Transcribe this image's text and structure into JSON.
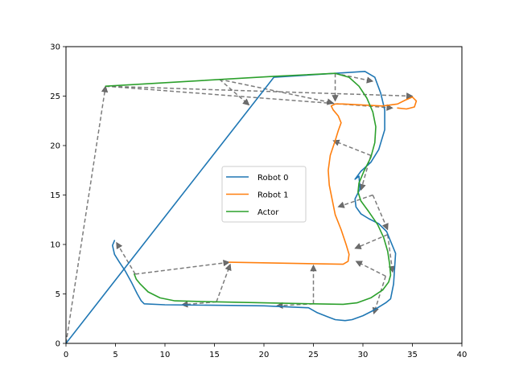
{
  "chart_data": {
    "type": "line",
    "title": "",
    "xlabel": "",
    "ylabel": "",
    "xlim": [
      0,
      40
    ],
    "ylim": [
      0,
      30
    ],
    "xticks": [
      0,
      5,
      10,
      15,
      20,
      25,
      30,
      35,
      40
    ],
    "yticks": [
      0,
      5,
      10,
      15,
      20,
      25,
      30
    ],
    "grid": false,
    "legend": {
      "placement": "center",
      "entries": [
        "Robot 0",
        "Robot 1",
        "Actor"
      ]
    },
    "series": [
      {
        "name": "Robot 0",
        "color": "#1f77b4",
        "x": [
          0,
          21,
          30.2,
          31.2,
          31.8,
          32.2,
          32.2,
          31.6,
          30.8,
          29.8,
          29.2,
          29.6,
          29.7,
          29.2,
          29.3,
          29.8,
          30.6,
          31.6,
          32.4,
          33.3,
          33.1,
          32.8,
          32.3,
          31,
          30,
          28.9,
          28.2,
          27.2,
          26.4,
          25.4,
          24.5,
          20,
          15,
          10,
          7.9,
          7.6,
          7.2,
          6.6,
          6,
          5.4,
          4.9,
          4.7,
          4.9
        ],
        "y": [
          0,
          26.9,
          27.5,
          26.9,
          25.3,
          23.6,
          21.6,
          19.6,
          18.3,
          17.4,
          16.6,
          16.9,
          15.6,
          14.6,
          13.8,
          13.1,
          12.6,
          12.1,
          11.3,
          9.1,
          6,
          4.5,
          4.1,
          3.3,
          2.8,
          2.4,
          2.3,
          2.4,
          2.7,
          3.1,
          3.6,
          3.8,
          3.85,
          3.9,
          4.0,
          4.3,
          5.0,
          6.2,
          7.3,
          8.2,
          9.0,
          9.9,
          10.4
        ]
      },
      {
        "name": "Robot 1",
        "color": "#ff7f0e",
        "x": [
          16.5,
          28,
          28.5,
          28.6,
          28.3,
          27.8,
          27.2,
          26.9,
          26.6,
          26.5,
          26.7,
          27.2,
          27.5,
          27.8,
          27.5,
          27.0,
          26.8,
          27.2,
          28,
          30,
          32,
          33.5,
          34.3,
          35,
          35.4,
          35.2,
          34.4,
          33.5
        ],
        "y": [
          8.2,
          8.0,
          8.3,
          9.0,
          10.0,
          11.5,
          13.0,
          14.5,
          16.0,
          17.5,
          19.0,
          20.5,
          21.5,
          22.3,
          23.0,
          23.6,
          24.0,
          24.2,
          24.2,
          24.1,
          24.0,
          24.2,
          24.6,
          24.9,
          24.5,
          23.9,
          23.7,
          23.8
        ]
      },
      {
        "name": "Actor",
        "color": "#2ca02c",
        "x": [
          4,
          21,
          27.2,
          28.6,
          29.6,
          30.4,
          31.0,
          31.3,
          31.2,
          30.8,
          30.1,
          29.6,
          29.5,
          29.8,
          30.6,
          31.5,
          32.1,
          32.5,
          32.7,
          32.8,
          32.6,
          32.0,
          30.8,
          29.4,
          28.0,
          25,
          20,
          15,
          11,
          9.5,
          8.3,
          7.5,
          7.1,
          6.9
        ],
        "y": [
          26,
          27.0,
          27.3,
          26.9,
          26.0,
          24.8,
          23.4,
          21.9,
          20.3,
          18.8,
          17.4,
          16.2,
          15.3,
          14.4,
          13.3,
          12.0,
          10.7,
          9.3,
          8.0,
          6.9,
          6.2,
          5.4,
          4.6,
          4.1,
          3.95,
          4.0,
          4.1,
          4.2,
          4.3,
          4.6,
          5.2,
          6.0,
          6.5,
          7.0
        ]
      }
    ],
    "arrows": [
      {
        "from": [
          0,
          0
        ],
        "to": [
          4,
          26
        ]
      },
      {
        "from": [
          4,
          26
        ],
        "to": [
          35,
          25
        ]
      },
      {
        "from": [
          4,
          26
        ],
        "to": [
          33,
          23.8
        ]
      },
      {
        "from": [
          15.5,
          26.7
        ],
        "to": [
          18.5,
          24.1
        ]
      },
      {
        "from": [
          15.5,
          26.7
        ],
        "to": [
          27,
          24.3
        ]
      },
      {
        "from": [
          27.2,
          27.3
        ],
        "to": [
          27.2,
          24.5
        ]
      },
      {
        "from": [
          27.2,
          27.3
        ],
        "to": [
          31,
          26.5
        ]
      },
      {
        "from": [
          30.8,
          19
        ],
        "to": [
          27,
          20.5
        ]
      },
      {
        "from": [
          30.8,
          19
        ],
        "to": [
          29.8,
          15.5
        ]
      },
      {
        "from": [
          31,
          15
        ],
        "to": [
          27.5,
          13.8
        ]
      },
      {
        "from": [
          31,
          15
        ],
        "to": [
          32.5,
          11.5
        ]
      },
      {
        "from": [
          32.5,
          11
        ],
        "to": [
          29.2,
          9.6
        ]
      },
      {
        "from": [
          32.5,
          11
        ],
        "to": [
          33,
          7.2
        ]
      },
      {
        "from": [
          32.3,
          6.8
        ],
        "to": [
          29.3,
          8.3
        ]
      },
      {
        "from": [
          32.3,
          6.8
        ],
        "to": [
          31.1,
          3.0
        ]
      },
      {
        "from": [
          7,
          7
        ],
        "to": [
          5.1,
          10.2
        ]
      },
      {
        "from": [
          7,
          7
        ],
        "to": [
          16.5,
          8.2
        ]
      },
      {
        "from": [
          15.2,
          4.2
        ],
        "to": [
          11.7,
          3.9
        ]
      },
      {
        "from": [
          15.2,
          4.2
        ],
        "to": [
          16.6,
          8.0
        ]
      },
      {
        "from": [
          25,
          4.0
        ],
        "to": [
          21.3,
          3.8
        ]
      },
      {
        "from": [
          25,
          4.0
        ],
        "to": [
          25,
          7.9
        ]
      }
    ]
  }
}
